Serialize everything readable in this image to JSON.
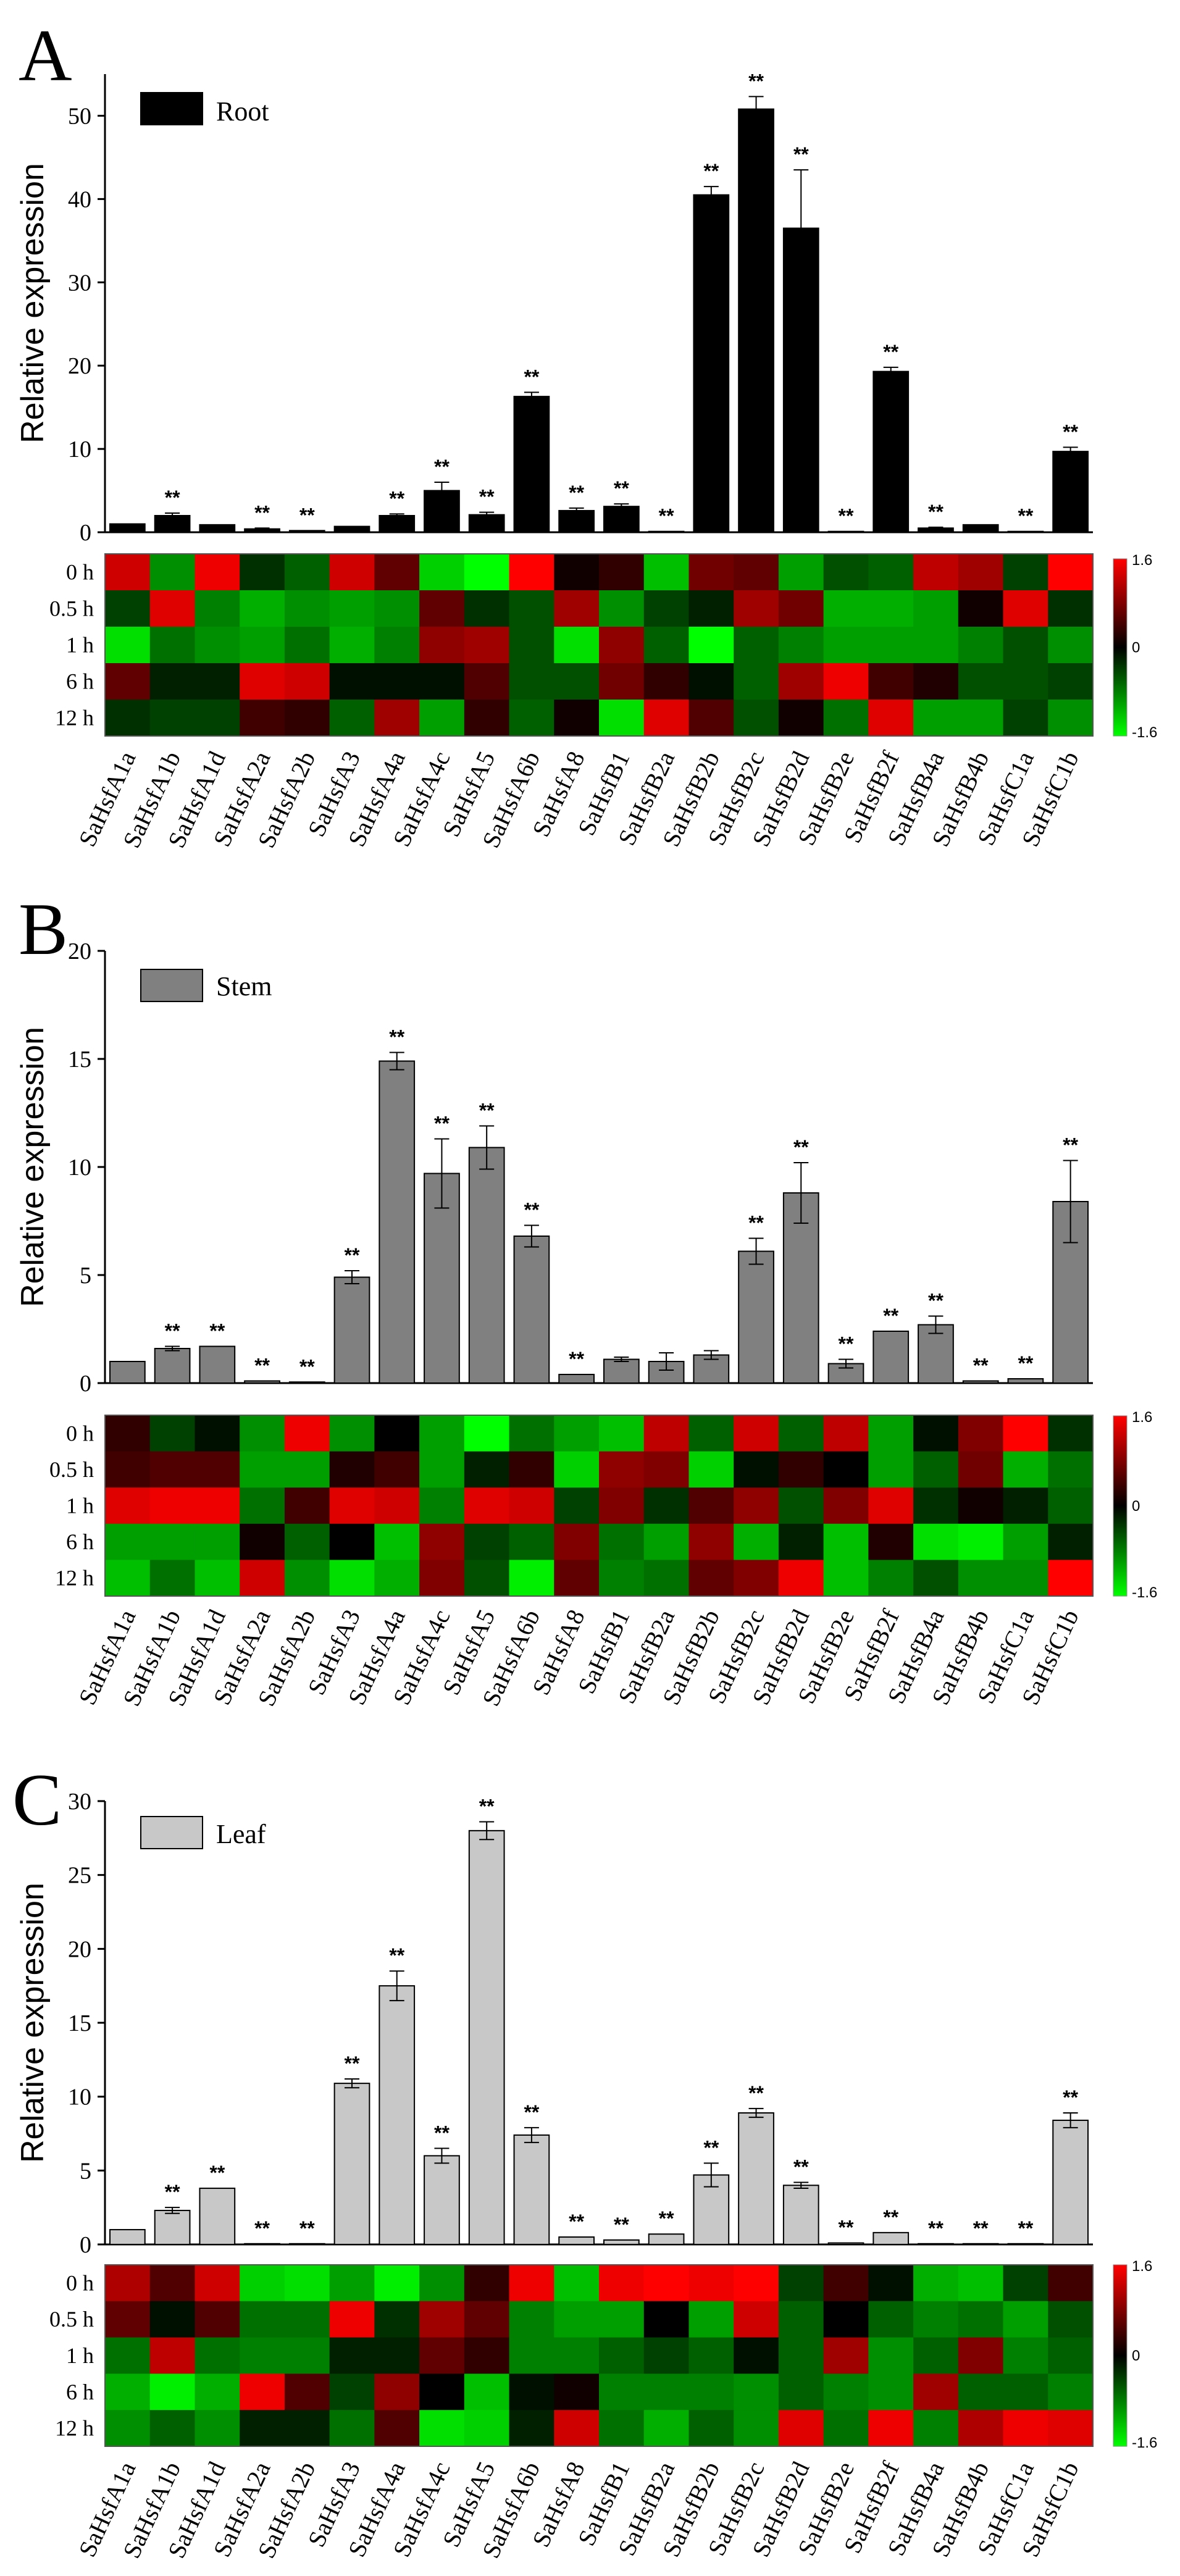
{
  "chart_data": [
    {
      "panel": "A",
      "type": "bar",
      "legend": "Root",
      "bar_color": "#000000",
      "ylabel": "Relative expression",
      "ylim": [
        0,
        55
      ],
      "yticks": [
        0,
        10,
        20,
        30,
        40,
        50
      ],
      "categories": [
        "SaHsfA1a",
        "SaHsfA1b",
        "SaHsfA1d",
        "SaHsfA2a",
        "SaHsfA2b",
        "SaHsfA3",
        "SaHsfA4a",
        "SaHsfA4c",
        "SaHsfA5",
        "SaHsfA6b",
        "SaHsfA8",
        "SaHsfB1",
        "SaHsfB2a",
        "SaHsfB2b",
        "SaHsfB2c",
        "SaHsfB2d",
        "SaHsfB2e",
        "SaHsfB2f",
        "SaHsfB4a",
        "SaHsfB4b",
        "SaHsfC1a",
        "SaHsfC1b"
      ],
      "values": [
        1.0,
        2.0,
        0.9,
        0.4,
        0.2,
        0.7,
        2.0,
        5.0,
        2.1,
        16.3,
        2.6,
        3.1,
        0.1,
        40.5,
        50.8,
        36.5,
        0.1,
        19.3,
        0.5,
        0.9,
        0.1,
        9.7
      ],
      "errors": [
        0,
        0.3,
        0,
        0.1,
        0,
        0,
        0.2,
        1.0,
        0.3,
        0.5,
        0.3,
        0.3,
        0,
        1.0,
        1.5,
        7.0,
        0,
        0.5,
        0.1,
        0,
        0,
        0.5
      ],
      "significance": [
        "",
        "**",
        "",
        "**",
        "**",
        "",
        "**",
        "**",
        "**",
        "**",
        "**",
        "**",
        "**",
        "**",
        "**",
        "**",
        "**",
        "**",
        "**",
        "",
        "**",
        "**"
      ],
      "heatmap": {
        "rows": [
          "0 h",
          "0.5 h",
          "1 h",
          "6 h",
          "12 h"
        ],
        "scale_max": "1.6",
        "scale_mid": "0",
        "scale_min": "-1.6",
        "values": [
          [
            1.3,
            -0.9,
            1.5,
            -0.3,
            -0.6,
            1.3,
            0.6,
            -1.3,
            -1.6,
            1.6,
            0.1,
            0.3,
            -1.2,
            0.7,
            0.6,
            -1.0,
            -0.5,
            -0.6,
            1.2,
            1.0,
            -0.4,
            1.6
          ],
          [
            -0.4,
            1.4,
            -0.8,
            -1.1,
            -0.9,
            -1.0,
            -0.9,
            0.6,
            -0.3,
            -0.5,
            1.0,
            -0.9,
            -0.4,
            -0.2,
            1.0,
            0.7,
            -1.1,
            -1.1,
            -1.0,
            0.1,
            1.4,
            -0.3
          ],
          [
            -1.4,
            -0.7,
            -0.9,
            -1.0,
            -0.7,
            -1.1,
            -0.8,
            0.9,
            1.0,
            -0.5,
            -1.4,
            0.9,
            -0.6,
            -1.6,
            -0.6,
            -0.8,
            -1.0,
            -1.0,
            -1.0,
            -0.8,
            -0.5,
            -0.9
          ],
          [
            0.6,
            -0.2,
            -0.2,
            1.4,
            1.3,
            -0.1,
            -0.1,
            -0.1,
            0.5,
            -0.5,
            -0.5,
            0.7,
            0.3,
            -0.1,
            -0.6,
            1.0,
            1.5,
            0.4,
            0.2,
            -0.5,
            -0.5,
            -0.4
          ],
          [
            -0.3,
            -0.4,
            -0.4,
            0.4,
            0.3,
            -0.6,
            1.0,
            -1.0,
            0.3,
            -0.6,
            0.1,
            -1.4,
            1.4,
            0.5,
            -0.5,
            0.1,
            -0.7,
            1.4,
            -1.0,
            -1.0,
            -0.4,
            -0.9
          ]
        ]
      }
    },
    {
      "panel": "B",
      "type": "bar",
      "legend": "Stem",
      "bar_color": "#808080",
      "ylabel": "Relative expression",
      "ylim": [
        0,
        20
      ],
      "yticks": [
        0,
        5,
        10,
        15,
        20
      ],
      "categories": [
        "SaHsfA1a",
        "SaHsfA1b",
        "SaHsfA1d",
        "SaHsfA2a",
        "SaHsfA2b",
        "SaHsfA3",
        "SaHsfA4a",
        "SaHsfA4c",
        "SaHsfA5",
        "SaHsfA6b",
        "SaHsfA8",
        "SaHsfB1",
        "SaHsfB2a",
        "SaHsfB2b",
        "SaHsfB2c",
        "SaHsfB2d",
        "SaHsfB2e",
        "SaHsfB2f",
        "SaHsfB4a",
        "SaHsfB4b",
        "SaHsfC1a",
        "SaHsfC1b"
      ],
      "values": [
        1.0,
        1.6,
        1.7,
        0.1,
        0.05,
        4.9,
        14.9,
        9.7,
        10.9,
        6.8,
        0.4,
        1.1,
        1.0,
        1.3,
        6.1,
        8.8,
        0.9,
        2.4,
        2.7,
        0.1,
        0.2,
        8.4
      ],
      "errors": [
        0,
        0.1,
        0,
        0,
        0,
        0.3,
        0.4,
        1.6,
        1.0,
        0.5,
        0,
        0.1,
        0.4,
        0.2,
        0.6,
        1.4,
        0.2,
        0,
        0.4,
        0,
        0,
        1.9
      ],
      "significance": [
        "",
        "**",
        "**",
        "**",
        "**",
        "**",
        "**",
        "**",
        "**",
        "**",
        "**",
        "",
        "",
        "",
        "**",
        "**",
        "**",
        "**",
        "**",
        "**",
        "**",
        "**"
      ],
      "heatmap": {
        "rows": [
          "0 h",
          "0.5 h",
          "1 h",
          "6 h",
          "12 h"
        ],
        "scale_max": "1.6",
        "scale_mid": "0",
        "scale_min": "-1.6",
        "values": [
          [
            0.3,
            -0.4,
            -0.1,
            -0.9,
            1.5,
            -0.9,
            0.0,
            -1.0,
            -1.6,
            -0.7,
            -1.0,
            -1.2,
            1.2,
            -0.6,
            1.3,
            -0.6,
            1.2,
            -1.0,
            -0.1,
            0.8,
            1.6,
            -0.3
          ],
          [
            0.4,
            0.5,
            0.5,
            -1.0,
            -1.0,
            0.2,
            0.4,
            -1.0,
            -0.2,
            0.3,
            -1.3,
            0.9,
            0.8,
            -1.3,
            -0.1,
            0.3,
            0.0,
            -1.0,
            -0.6,
            0.7,
            -1.1,
            -0.7
          ],
          [
            1.4,
            1.5,
            1.5,
            -0.7,
            0.4,
            1.4,
            1.3,
            -0.8,
            1.4,
            1.3,
            -0.4,
            0.8,
            -0.3,
            0.5,
            0.9,
            -0.5,
            0.8,
            1.4,
            -0.3,
            0.1,
            -0.2,
            -0.6
          ],
          [
            -1.0,
            -1.0,
            -1.0,
            0.1,
            -0.6,
            0.0,
            -1.2,
            0.9,
            -0.4,
            -0.6,
            0.8,
            -0.7,
            -1.0,
            0.9,
            -1.1,
            -0.2,
            -1.2,
            0.2,
            -1.4,
            -1.5,
            -1.0,
            -0.2
          ],
          [
            -1.2,
            -0.7,
            -1.2,
            1.3,
            -0.9,
            -1.4,
            -1.1,
            0.8,
            -0.5,
            -1.5,
            0.6,
            -0.8,
            -0.7,
            0.6,
            0.8,
            1.5,
            -1.2,
            -0.8,
            -0.5,
            -0.9,
            -0.9,
            1.6
          ]
        ]
      }
    },
    {
      "panel": "C",
      "type": "bar",
      "legend": "Leaf",
      "bar_color": "#c8c8c8",
      "ylabel": "Relative expression",
      "ylim": [
        0,
        30
      ],
      "yticks": [
        0,
        5,
        10,
        15,
        20,
        25,
        30
      ],
      "categories": [
        "SaHsfA1a",
        "SaHsfA1b",
        "SaHsfA1d",
        "SaHsfA2a",
        "SaHsfA2b",
        "SaHsfA3",
        "SaHsfA4a",
        "SaHsfA4c",
        "SaHsfA5",
        "SaHsfA6b",
        "SaHsfA8",
        "SaHsfB1",
        "SaHsfB2a",
        "SaHsfB2b",
        "SaHsfB2c",
        "SaHsfB2d",
        "SaHsfB2e",
        "SaHsfB2f",
        "SaHsfB4a",
        "SaHsfB4b",
        "SaHsfC1a",
        "SaHsfC1b"
      ],
      "values": [
        1.0,
        2.3,
        3.8,
        0.05,
        0.05,
        10.9,
        17.5,
        6.0,
        28.0,
        7.4,
        0.5,
        0.3,
        0.7,
        4.7,
        8.9,
        4.0,
        0.1,
        0.8,
        0.05,
        0.05,
        0.05,
        8.4
      ],
      "errors": [
        0,
        0.2,
        0,
        0,
        0,
        0.3,
        1.0,
        0.5,
        0.6,
        0.5,
        0,
        0,
        0,
        0.8,
        0.3,
        0.2,
        0,
        0,
        0,
        0,
        0,
        0.5
      ],
      "significance": [
        "",
        "**",
        "**",
        "**",
        "**",
        "**",
        "**",
        "**",
        "**",
        "**",
        "**",
        "**",
        "**",
        "**",
        "**",
        "**",
        "**",
        "**",
        "**",
        "**",
        "**",
        "**"
      ],
      "heatmap": {
        "rows": [
          "0 h",
          "0.5 h",
          "1 h",
          "6 h",
          "12 h"
        ],
        "scale_max": "1.6",
        "scale_mid": "0",
        "scale_min": "-1.6",
        "values": [
          [
            1.1,
            0.5,
            1.3,
            -1.3,
            -1.4,
            -1.0,
            -1.5,
            -0.9,
            0.3,
            1.5,
            -1.2,
            1.5,
            1.6,
            1.5,
            1.6,
            -0.4,
            0.4,
            -0.1,
            -1.1,
            -1.2,
            -0.4,
            0.4
          ],
          [
            0.6,
            -0.1,
            0.5,
            -0.7,
            -0.7,
            1.5,
            -0.3,
            1.0,
            0.6,
            -0.8,
            -1.0,
            -1.0,
            0.0,
            -1.0,
            1.3,
            -0.6,
            0.0,
            -0.6,
            -0.8,
            -0.7,
            -1.0,
            -0.5
          ],
          [
            -0.7,
            1.2,
            -0.7,
            -0.8,
            -0.8,
            -0.2,
            -0.2,
            0.6,
            0.3,
            -0.8,
            -0.8,
            -0.6,
            -0.4,
            -0.6,
            -0.1,
            -0.6,
            1.0,
            -0.9,
            -0.6,
            0.8,
            -0.8,
            -0.6
          ],
          [
            -1.1,
            -1.5,
            -1.1,
            1.5,
            0.5,
            -0.4,
            0.9,
            0.0,
            -1.2,
            -0.1,
            0.1,
            -0.8,
            -0.8,
            -0.8,
            -0.9,
            -0.6,
            -0.8,
            -0.9,
            1.0,
            -0.6,
            -0.6,
            -0.8
          ],
          [
            -0.9,
            -0.6,
            -0.9,
            -0.2,
            -0.2,
            -0.7,
            0.5,
            -1.4,
            -1.3,
            -0.2,
            1.3,
            -0.7,
            -1.1,
            -0.6,
            -0.9,
            1.4,
            -0.7,
            1.5,
            -0.8,
            1.1,
            1.5,
            1.4
          ]
        ]
      }
    }
  ]
}
